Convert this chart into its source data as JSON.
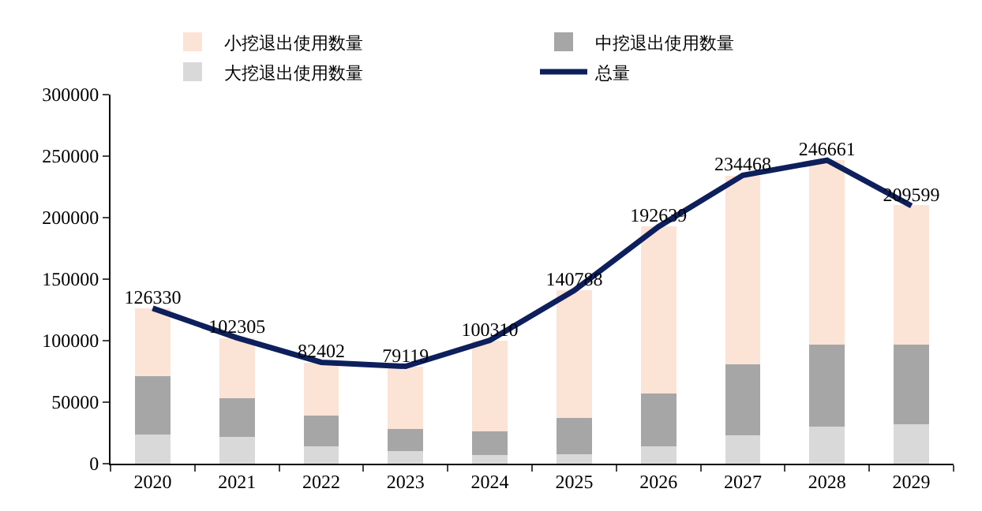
{
  "chart_data": {
    "type": "bar",
    "stacked": true,
    "categories": [
      "2020",
      "2021",
      "2022",
      "2023",
      "2024",
      "2025",
      "2026",
      "2027",
      "2028",
      "2029"
    ],
    "series": [
      {
        "name": "大挖退出使用数量",
        "color": "#d9d9d9",
        "values": [
          24000,
          22000,
          14000,
          10000,
          7000,
          8000,
          14000,
          23000,
          30000,
          32000
        ]
      },
      {
        "name": "中挖退出使用数量",
        "color": "#a6a6a6",
        "values": [
          47000,
          31000,
          25000,
          18000,
          19000,
          29000,
          43000,
          58000,
          67000,
          65000
        ]
      },
      {
        "name": "小挖退出使用数量",
        "color": "#fbe3d6",
        "values": [
          55000,
          49000,
          43000,
          51000,
          74000,
          104000,
          136000,
          153000,
          150000,
          113000
        ]
      },
      {
        "name": "总量",
        "type": "line",
        "color": "#0d1f5c",
        "values": [
          126330,
          102305,
          82402,
          79119,
          100310,
          140788,
          192639,
          234468,
          246661,
          209599
        ],
        "value_labels": [
          "126330",
          "102305",
          "82402",
          "79119",
          "100310",
          "140788",
          "192639",
          "234468",
          "246661",
          "209599"
        ]
      }
    ],
    "ylim": [
      0,
      300000
    ],
    "yticks": [
      0,
      50000,
      100000,
      150000,
      200000,
      250000,
      300000
    ],
    "grid": false,
    "legend": "top",
    "marker": "none",
    "line_style": "solid"
  }
}
